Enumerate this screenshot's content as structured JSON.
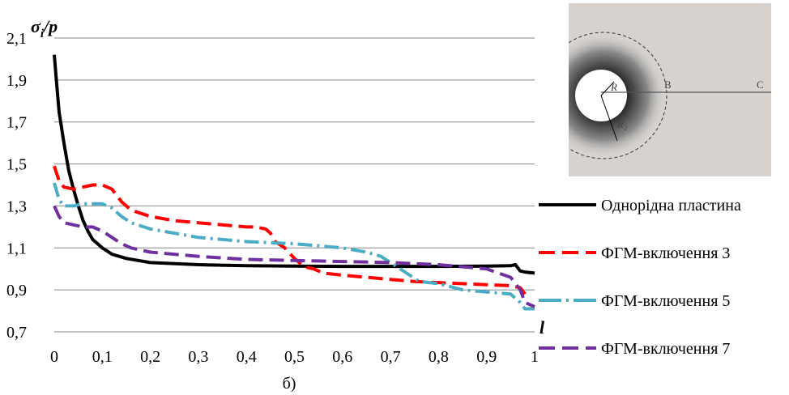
{
  "chart_data": {
    "type": "line",
    "ylabel_main": "σ",
    "ylabel_sub": "i",
    "ylabel_rest": "/p",
    "xlabel": "l",
    "caption": "б)",
    "xlim": [
      0,
      1
    ],
    "ylim": [
      0.7,
      2.1
    ],
    "x_ticks": [
      "0",
      "0,1",
      "0,2",
      "0,3",
      "0,4",
      "0,5",
      "0,6",
      "0,7",
      "0,8",
      "0,9",
      "1"
    ],
    "y_ticks": [
      "0,7",
      "0,9",
      "1,1",
      "1,3",
      "1,5",
      "1,7",
      "1,9",
      "2,1"
    ],
    "grid": "horizontal",
    "legend_position": "right",
    "series": [
      {
        "name": "Однорідна пластина",
        "color": "#000000",
        "dash": "solid",
        "points": [
          [
            0,
            2.02
          ],
          [
            0.005,
            1.88
          ],
          [
            0.01,
            1.75
          ],
          [
            0.02,
            1.6
          ],
          [
            0.03,
            1.47
          ],
          [
            0.04,
            1.38
          ],
          [
            0.05,
            1.3
          ],
          [
            0.06,
            1.23
          ],
          [
            0.07,
            1.18
          ],
          [
            0.08,
            1.14
          ],
          [
            0.1,
            1.1
          ],
          [
            0.12,
            1.07
          ],
          [
            0.15,
            1.05
          ],
          [
            0.2,
            1.03
          ],
          [
            0.3,
            1.02
          ],
          [
            0.4,
            1.015
          ],
          [
            0.5,
            1.013
          ],
          [
            0.6,
            1.012
          ],
          [
            0.7,
            1.012
          ],
          [
            0.8,
            1.012
          ],
          [
            0.9,
            1.013
          ],
          [
            0.95,
            1.015
          ],
          [
            0.96,
            1.02
          ],
          [
            0.97,
            0.99
          ],
          [
            0.98,
            0.985
          ],
          [
            1,
            0.98
          ]
        ]
      },
      {
        "name": "ФГМ-включення 3",
        "color": "#ff0000",
        "dash": "long",
        "points": [
          [
            0,
            1.49
          ],
          [
            0.01,
            1.42
          ],
          [
            0.02,
            1.39
          ],
          [
            0.04,
            1.38
          ],
          [
            0.06,
            1.39
          ],
          [
            0.08,
            1.4
          ],
          [
            0.1,
            1.4
          ],
          [
            0.12,
            1.38
          ],
          [
            0.14,
            1.32
          ],
          [
            0.16,
            1.28
          ],
          [
            0.2,
            1.25
          ],
          [
            0.25,
            1.23
          ],
          [
            0.3,
            1.22
          ],
          [
            0.4,
            1.2
          ],
          [
            0.42,
            1.2
          ],
          [
            0.44,
            1.19
          ],
          [
            0.45,
            1.17
          ],
          [
            0.46,
            1.13
          ],
          [
            0.48,
            1.1
          ],
          [
            0.5,
            1.05
          ],
          [
            0.52,
            1.01
          ],
          [
            0.54,
            1.0
          ],
          [
            0.56,
            0.98
          ],
          [
            0.6,
            0.97
          ],
          [
            0.7,
            0.95
          ],
          [
            0.75,
            0.94
          ],
          [
            0.8,
            0.935
          ],
          [
            0.9,
            0.925
          ],
          [
            0.95,
            0.92
          ],
          [
            0.97,
            0.91
          ],
          [
            0.98,
            0.88
          ]
        ]
      },
      {
        "name": "ФГМ-включення 5",
        "color": "#4bacc6",
        "dash": "dashdot",
        "points": [
          [
            0,
            1.41
          ],
          [
            0.01,
            1.33
          ],
          [
            0.02,
            1.3
          ],
          [
            0.04,
            1.3
          ],
          [
            0.06,
            1.31
          ],
          [
            0.08,
            1.31
          ],
          [
            0.1,
            1.31
          ],
          [
            0.12,
            1.29
          ],
          [
            0.14,
            1.25
          ],
          [
            0.16,
            1.22
          ],
          [
            0.2,
            1.19
          ],
          [
            0.25,
            1.17
          ],
          [
            0.3,
            1.15
          ],
          [
            0.4,
            1.13
          ],
          [
            0.5,
            1.12
          ],
          [
            0.6,
            1.1
          ],
          [
            0.65,
            1.08
          ],
          [
            0.68,
            1.06
          ],
          [
            0.7,
            1.03
          ],
          [
            0.72,
            1.0
          ],
          [
            0.74,
            0.97
          ],
          [
            0.76,
            0.94
          ],
          [
            0.8,
            0.93
          ],
          [
            0.85,
            0.9
          ],
          [
            0.9,
            0.89
          ],
          [
            0.95,
            0.88
          ],
          [
            0.97,
            0.84
          ],
          [
            0.98,
            0.81
          ],
          [
            1,
            0.81
          ]
        ]
      },
      {
        "name": "ФГМ-включення 7",
        "color": "#7030a0",
        "dash": "long",
        "points": [
          [
            0,
            1.3
          ],
          [
            0.01,
            1.25
          ],
          [
            0.02,
            1.22
          ],
          [
            0.04,
            1.21
          ],
          [
            0.06,
            1.2
          ],
          [
            0.08,
            1.2
          ],
          [
            0.1,
            1.18
          ],
          [
            0.12,
            1.15
          ],
          [
            0.14,
            1.12
          ],
          [
            0.16,
            1.1
          ],
          [
            0.2,
            1.08
          ],
          [
            0.3,
            1.06
          ],
          [
            0.4,
            1.045
          ],
          [
            0.5,
            1.04
          ],
          [
            0.6,
            1.035
          ],
          [
            0.7,
            1.03
          ],
          [
            0.8,
            1.02
          ],
          [
            0.9,
            1.0
          ],
          [
            0.95,
            0.96
          ],
          [
            0.97,
            0.9
          ],
          [
            0.98,
            0.84
          ],
          [
            1,
            0.82
          ]
        ]
      }
    ],
    "inset": {
      "labels": [
        "A",
        "B",
        "C",
        "R",
        "R₂"
      ]
    }
  }
}
